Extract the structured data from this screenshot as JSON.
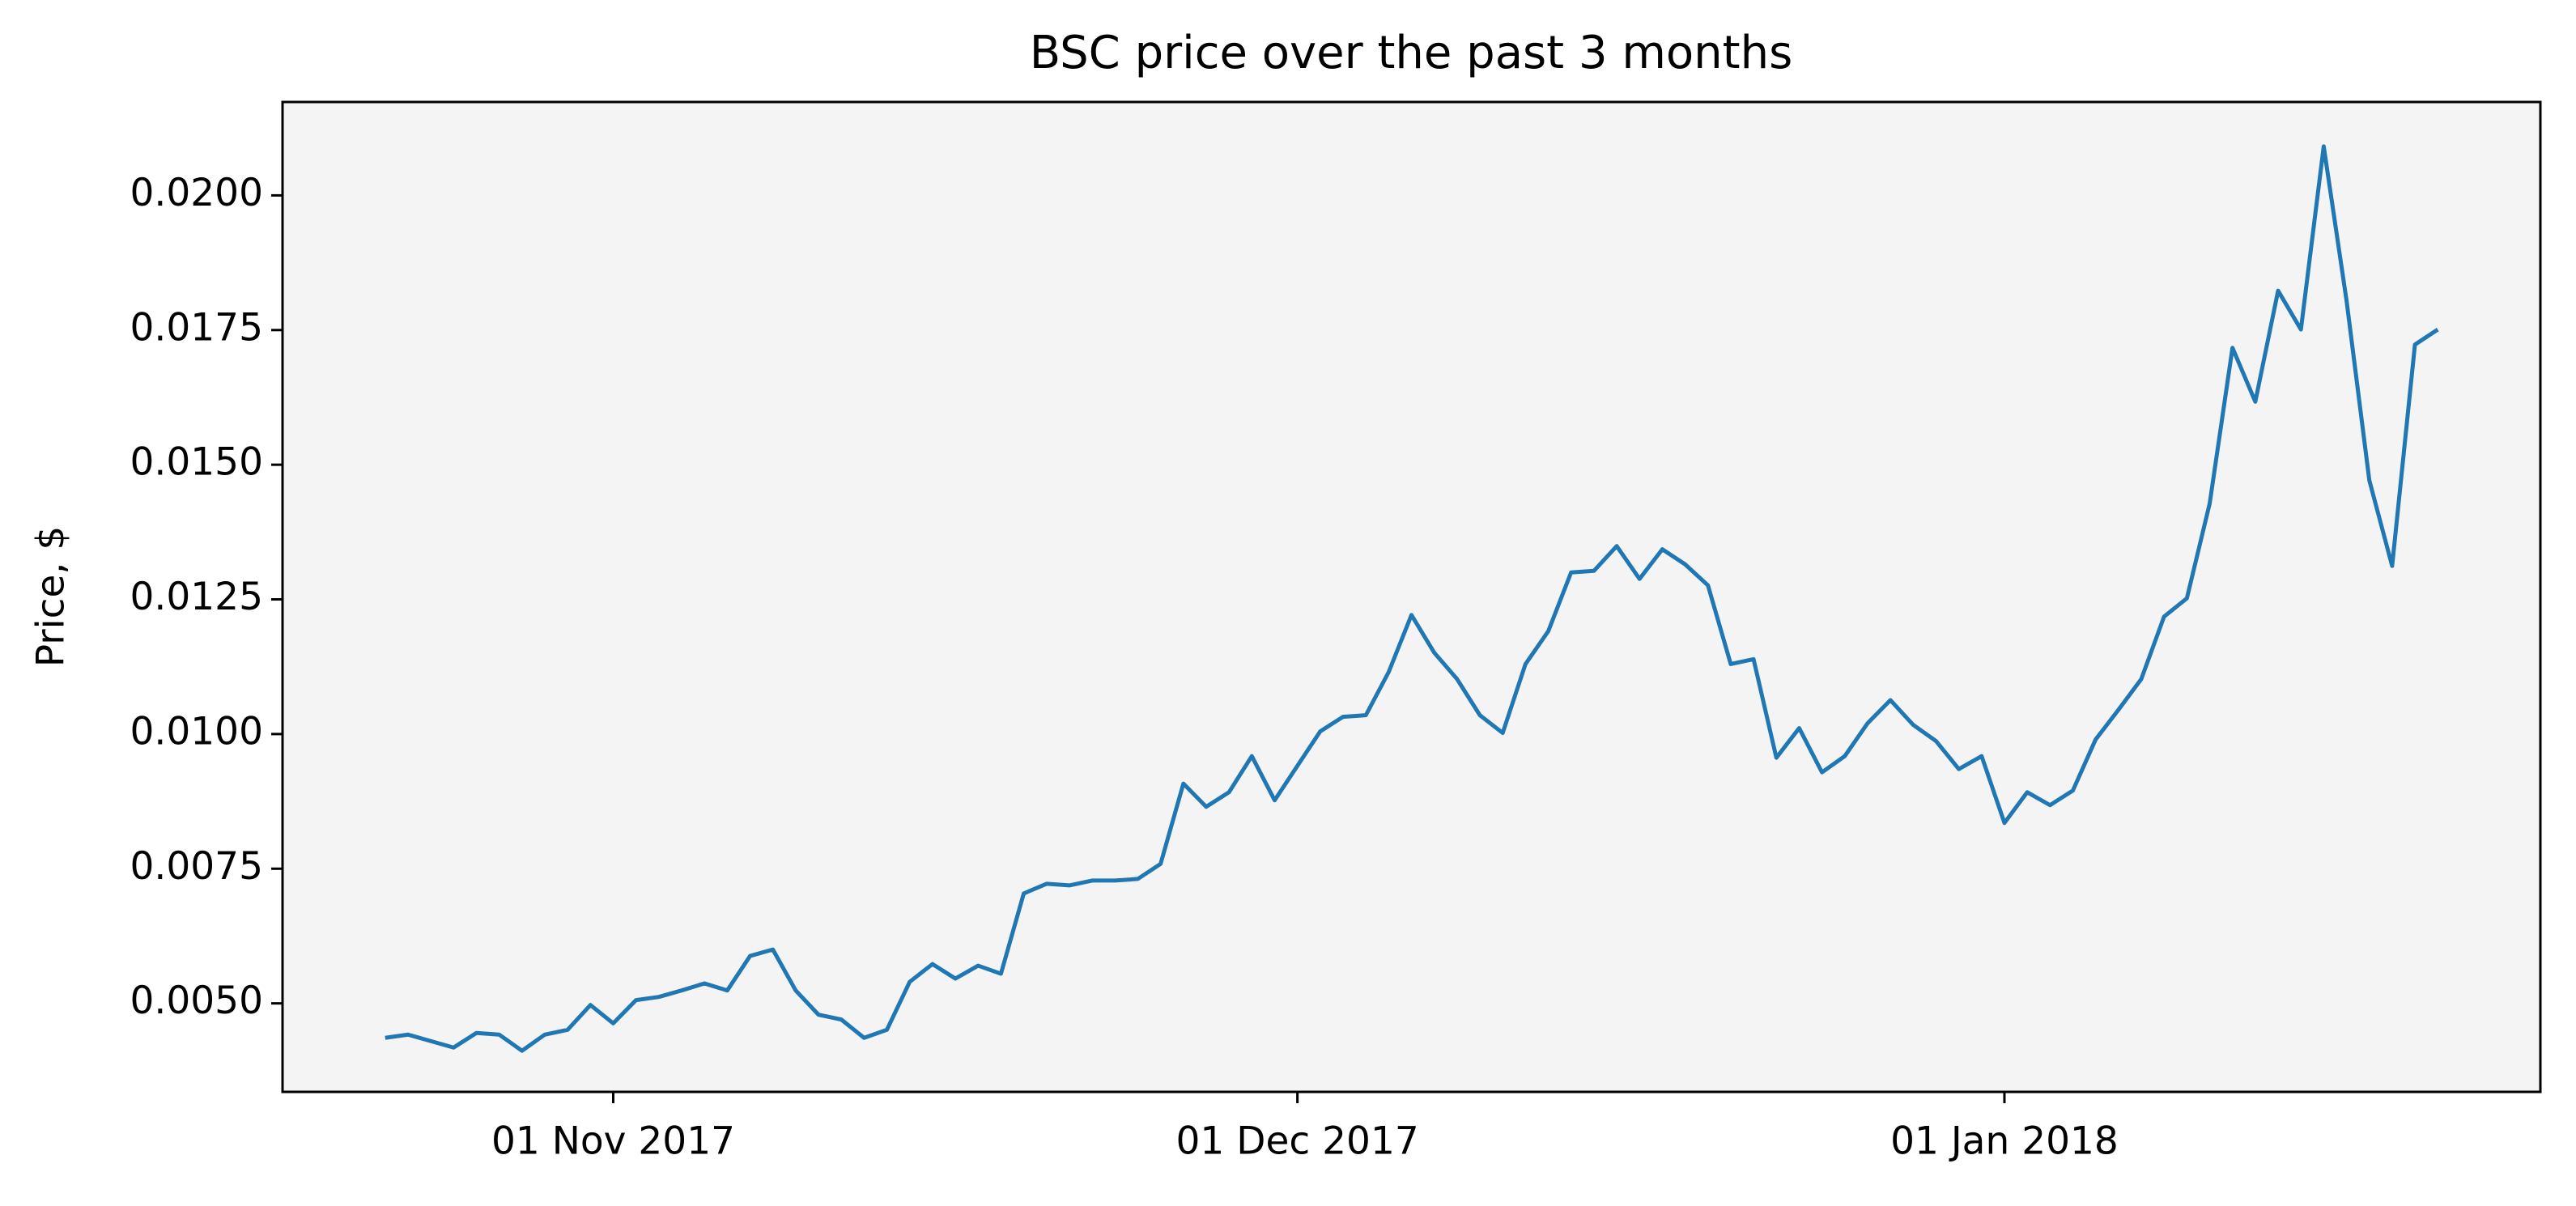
{
  "chart_data": {
    "type": "line",
    "title": "BSC price over the past 3 months",
    "y_label": "Price, $",
    "x": [
      "2017-10-22",
      "2017-10-23",
      "2017-10-24",
      "2017-10-25",
      "2017-10-26",
      "2017-10-27",
      "2017-10-28",
      "2017-10-29",
      "2017-10-30",
      "2017-10-31",
      "2017-11-01",
      "2017-11-02",
      "2017-11-03",
      "2017-11-04",
      "2017-11-05",
      "2017-11-06",
      "2017-11-07",
      "2017-11-08",
      "2017-11-09",
      "2017-11-10",
      "2017-11-11",
      "2017-11-12",
      "2017-11-13",
      "2017-11-14",
      "2017-11-15",
      "2017-11-16",
      "2017-11-17",
      "2017-11-18",
      "2017-11-19",
      "2017-11-20",
      "2017-11-21",
      "2017-11-22",
      "2017-11-23",
      "2017-11-24",
      "2017-11-25",
      "2017-11-26",
      "2017-11-27",
      "2017-11-28",
      "2017-11-29",
      "2017-11-30",
      "2017-12-01",
      "2017-12-02",
      "2017-12-03",
      "2017-12-04",
      "2017-12-05",
      "2017-12-06",
      "2017-12-07",
      "2017-12-08",
      "2017-12-09",
      "2017-12-10",
      "2017-12-11",
      "2017-12-12",
      "2017-12-13",
      "2017-12-14",
      "2017-12-15",
      "2017-12-16",
      "2017-12-17",
      "2017-12-18",
      "2017-12-19",
      "2017-12-20",
      "2017-12-21",
      "2017-12-22",
      "2017-12-23",
      "2017-12-24",
      "2017-12-25",
      "2017-12-26",
      "2017-12-27",
      "2017-12-28",
      "2017-12-29",
      "2017-12-30",
      "2017-12-31",
      "2018-01-01",
      "2018-01-02",
      "2018-01-03",
      "2018-01-04",
      "2018-01-05",
      "2018-01-06",
      "2018-01-07",
      "2018-01-08",
      "2018-01-09",
      "2018-01-10",
      "2018-01-11",
      "2018-01-12",
      "2018-01-13",
      "2018-01-14",
      "2018-01-15",
      "2018-01-16",
      "2018-01-17",
      "2018-01-18",
      "2018-01-19",
      "2018-01-20"
    ],
    "series": [
      {
        "color": "#1f77b4",
        "values": [
          0.00436,
          0.00442,
          0.0043,
          0.00418,
          0.00445,
          0.00442,
          0.00412,
          0.00442,
          0.00451,
          0.00497,
          0.00463,
          0.00506,
          0.00512,
          0.00524,
          0.00537,
          0.00524,
          0.00588,
          0.006,
          0.00524,
          0.00479,
          0.0047,
          0.00436,
          0.00451,
          0.0054,
          0.00573,
          0.00546,
          0.0057,
          0.00555,
          0.00704,
          0.00722,
          0.00719,
          0.00728,
          0.00728,
          0.00731,
          0.00759,
          0.00908,
          0.00865,
          0.00892,
          0.00959,
          0.00877,
          0.00941,
          0.01005,
          0.01032,
          0.01035,
          0.01115,
          0.01221,
          0.01151,
          0.01102,
          0.01035,
          0.01002,
          0.0113,
          0.01191,
          0.013,
          0.01303,
          0.01349,
          0.01288,
          0.01343,
          0.01315,
          0.01276,
          0.0113,
          0.01139,
          0.00956,
          0.01011,
          0.00929,
          0.00959,
          0.0102,
          0.01063,
          0.01017,
          0.00987,
          0.00935,
          0.00959,
          0.00835,
          0.00892,
          0.00868,
          0.00895,
          0.0099,
          0.01045,
          0.01102,
          0.01218,
          0.01252,
          0.01428,
          0.01717,
          0.01617,
          0.01823,
          0.01751,
          0.02091,
          0.01805,
          0.01471,
          0.01312,
          0.01723,
          0.01751
        ]
      }
    ],
    "xlim": [
      "2017-10-17T12:00:00Z",
      "2018-01-24T12:00:00Z"
    ],
    "xticks": [
      {
        "value": "2017-11-01",
        "label": "01 Nov 2017"
      },
      {
        "value": "2017-12-01",
        "label": "01 Dec 2017"
      },
      {
        "value": "2018-01-01",
        "label": "01 Jan 2018"
      }
    ],
    "ylim": [
      0.003357,
      0.021734
    ],
    "yticks": [
      {
        "value": 0.005,
        "label": "0.0050"
      },
      {
        "value": 0.0075,
        "label": "0.0075"
      },
      {
        "value": 0.01,
        "label": "0.0100"
      },
      {
        "value": 0.0125,
        "label": "0.0125"
      },
      {
        "value": 0.015,
        "label": "0.0150"
      },
      {
        "value": 0.0175,
        "label": "0.0175"
      },
      {
        "value": 0.02,
        "label": "0.0200"
      }
    ],
    "plot_background": "#f4f4f4",
    "grid": false
  }
}
